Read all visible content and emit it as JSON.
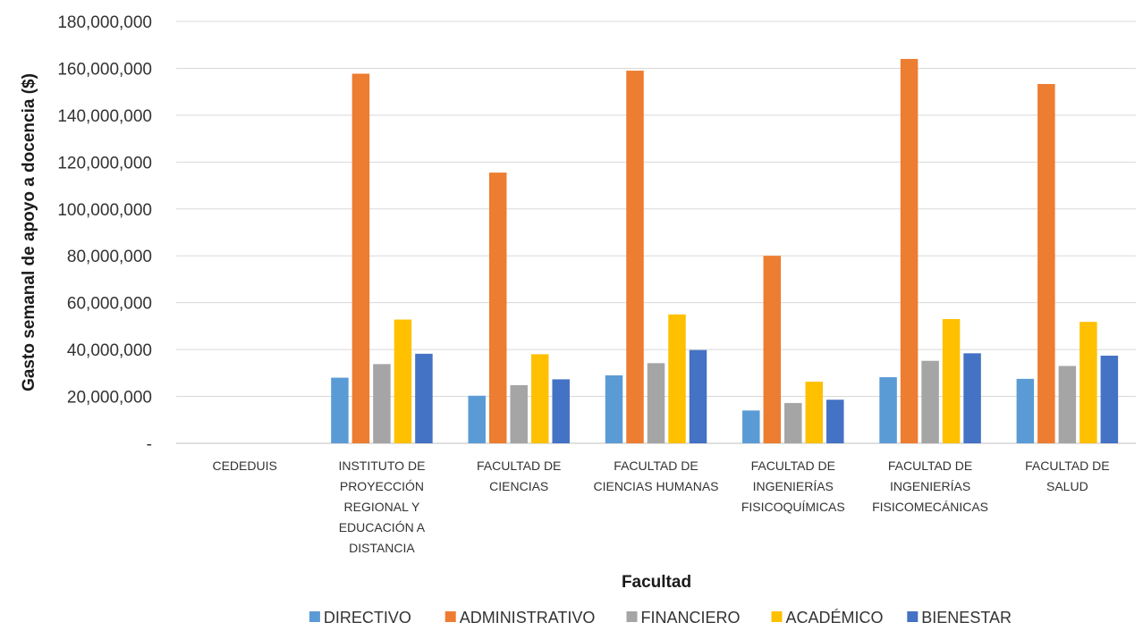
{
  "chart_data": {
    "type": "bar",
    "title": "",
    "xlabel": "Facultad",
    "ylabel": "Gasto semanal de apoyo a docencia ($)",
    "ylim": [
      0,
      180000000
    ],
    "yticks": [
      0,
      20000000,
      40000000,
      60000000,
      80000000,
      100000000,
      120000000,
      140000000,
      160000000,
      180000000
    ],
    "ytick_labels": [
      "-",
      "20,000,000",
      "40,000,000",
      "60,000,000",
      "80,000,000",
      "100,000,000",
      "120,000,000",
      "140,000,000",
      "160,000,000",
      "180,000,000"
    ],
    "grid": true,
    "legend_position": "bottom",
    "categories": [
      [
        "CEDEDUIS"
      ],
      [
        "INSTITUTO DE",
        "PROYECCIÓN",
        "REGIONAL Y",
        "EDUCACIÓN A",
        "DISTANCIA"
      ],
      [
        "FACULTAD DE",
        "CIENCIAS"
      ],
      [
        "FACULTAD DE",
        "CIENCIAS HUMANAS"
      ],
      [
        "FACULTAD DE",
        "INGENIERÍAS",
        "FISICOQUÍMICAS"
      ],
      [
        "FACULTAD DE",
        "INGENIERÍAS",
        "FISICOMECÁNICAS"
      ],
      [
        "FACULTAD DE",
        "SALUD"
      ]
    ],
    "series": [
      {
        "name": "DIRECTIVO",
        "color": "#5B9BD5",
        "values": [
          0,
          28000000,
          20300000,
          29000000,
          14000000,
          28200000,
          27500000
        ]
      },
      {
        "name": "ADMINISTRATIVO",
        "color": "#ED7D31",
        "values": [
          0,
          157700000,
          115500000,
          159000000,
          80000000,
          164000000,
          153300000
        ]
      },
      {
        "name": "FINANCIERO",
        "color": "#A5A5A5",
        "values": [
          0,
          33800000,
          24800000,
          34200000,
          17200000,
          35200000,
          33000000
        ]
      },
      {
        "name": "ACADÉMICO",
        "color": "#FFC000",
        "values": [
          0,
          52800000,
          38000000,
          55000000,
          26300000,
          53000000,
          51800000
        ]
      },
      {
        "name": "BIENESTAR",
        "color": "#4472C4",
        "values": [
          0,
          38200000,
          27300000,
          39800000,
          18600000,
          38400000,
          37400000
        ]
      }
    ]
  }
}
